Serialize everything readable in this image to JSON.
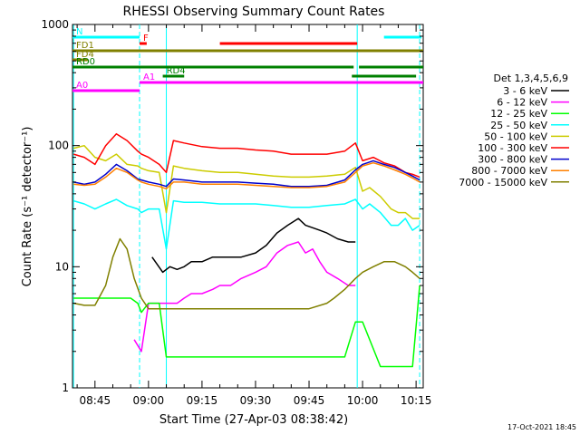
{
  "chart_data": {
    "type": "line",
    "title": "RHESSI Observing Summary Count Rates",
    "xlabel": "Start Time (27-Apr-03 08:38:42)",
    "ylabel": "Count Rate (s⁻¹ detector⁻¹)",
    "y_scale": "log",
    "ylim": [
      1,
      1000
    ],
    "xlim": [
      "08:38:42",
      "10:17:00"
    ],
    "x_ticks": [
      "08:45",
      "09:00",
      "09:15",
      "09:30",
      "09:45",
      "10:00",
      "10:15"
    ],
    "y_ticks": [
      "1",
      "10",
      "100",
      "1000"
    ],
    "footer": "17-Oct-2021 18:45",
    "legend": {
      "title": "Det 1,3,4,5,6,9",
      "position": "right",
      "entries": [
        {
          "label": "3 - 6 keV",
          "color": "#000000"
        },
        {
          "label": "6 - 12 keV",
          "color": "#ff00ff"
        },
        {
          "label": "12 - 25 keV",
          "color": "#00ff00"
        },
        {
          "label": "25 - 50 keV",
          "color": "#00ffff"
        },
        {
          "label": "50 - 100 keV",
          "color": "#cccc00"
        },
        {
          "label": "100 - 300 keV",
          "color": "#ff0000"
        },
        {
          "label": "300 - 800 keV",
          "color": "#0000cc"
        },
        {
          "label": "800 - 7000 keV",
          "color": "#ff8000"
        },
        {
          "label": "7000 - 15000 keV",
          "color": "#808000"
        }
      ]
    },
    "flags": [
      {
        "label": "N",
        "color": "#00ffff",
        "start": "08:38:42",
        "end": "08:57:30",
        "segments": [
          [
            "08:38:42",
            "08:57:30"
          ],
          [
            "10:06:00",
            "10:16:30"
          ]
        ]
      },
      {
        "label": "F",
        "color": "#ff0000",
        "start": "08:57:30",
        "end": "08:59:30",
        "segments": [
          [
            "08:57:30",
            "08:59:30"
          ],
          [
            "09:20:00",
            "09:58:30"
          ]
        ]
      },
      {
        "label": "FD1",
        "color": "#808000",
        "start": "08:38:42",
        "end": "10:17:00",
        "segments": [
          [
            "08:38:42",
            "10:17:00"
          ]
        ]
      },
      {
        "label": "FD4",
        "color": "#808000",
        "start": "08:38:42",
        "end": "08:43:00",
        "segments": [
          [
            "08:38:42",
            "08:43:00"
          ]
        ]
      },
      {
        "label": "RD0",
        "color": "#008000",
        "start": "08:38:42",
        "end": "10:17:00",
        "segments": [
          [
            "08:38:42",
            "09:57:30"
          ],
          [
            "09:59:00",
            "10:17:00"
          ]
        ]
      },
      {
        "label": "RD4",
        "color": "#008000",
        "start": "09:04:00",
        "end": "09:10:00",
        "segments": [
          [
            "09:04:00",
            "09:10:00"
          ],
          [
            "09:57:00",
            "10:15:00"
          ]
        ]
      },
      {
        "label": "A0",
        "color": "#ff00ff",
        "start": "08:38:42",
        "end": "08:57:30",
        "segments": [
          [
            "08:38:42",
            "08:57:30"
          ]
        ]
      },
      {
        "label": "A1",
        "color": "#ff00ff",
        "start": "08:57:30",
        "end": "10:17:00",
        "segments": [
          [
            "08:57:30",
            "10:17:00"
          ]
        ]
      }
    ],
    "series": [
      {
        "name": "3 - 6 keV",
        "color": "#000000",
        "x": [
          "09:01",
          "09:04",
          "09:06",
          "09:08",
          "09:10",
          "09:12",
          "09:15",
          "09:18",
          "09:20",
          "09:23",
          "09:26",
          "09:30",
          "09:33",
          "09:36",
          "09:39",
          "09:42",
          "09:44",
          "09:46",
          "09:48",
          "09:50",
          "09:53",
          "09:56",
          "09:58"
        ],
        "y": [
          12,
          9,
          10,
          9.5,
          10,
          11,
          11,
          12,
          12,
          12,
          12,
          13,
          15,
          19,
          22,
          25,
          22,
          21,
          20,
          19,
          17,
          16,
          16
        ]
      },
      {
        "name": "6 - 12 keV",
        "color": "#ff00ff",
        "x": [
          "08:56",
          "08:58",
          "09:00",
          "09:02",
          "09:04",
          "09:06",
          "09:08",
          "09:10",
          "09:12",
          "09:15",
          "09:18",
          "09:20",
          "09:23",
          "09:26",
          "09:30",
          "09:33",
          "09:36",
          "09:39",
          "09:42",
          "09:44",
          "09:46",
          "09:48",
          "09:50",
          "09:53",
          "09:56",
          "09:58"
        ],
        "y": [
          2.5,
          2,
          5,
          5,
          5,
          5,
          5,
          5.5,
          6,
          6,
          6.5,
          7,
          7,
          8,
          9,
          10,
          13,
          15,
          16,
          13,
          14,
          11,
          9,
          8,
          7,
          7
        ]
      },
      {
        "name": "12 - 25 keV",
        "color": "#00ff00",
        "x": [
          "08:39",
          "08:45",
          "08:50",
          "08:55",
          "08:57",
          "08:58",
          "09:00",
          "09:03",
          "09:05",
          "09:07",
          "09:10",
          "09:15",
          "09:20",
          "09:30",
          "09:40",
          "09:48",
          "09:55",
          "09:58",
          "10:00",
          "10:05",
          "10:10",
          "10:14",
          "10:16"
        ],
        "y": [
          5.5,
          5.5,
          5.5,
          5.5,
          5,
          4.2,
          5,
          5,
          1.8,
          1.8,
          1.8,
          1.8,
          1.8,
          1.8,
          1.8,
          1.8,
          1.8,
          3.5,
          3.5,
          1.5,
          1.5,
          1.5,
          7
        ]
      },
      {
        "name": "25 - 50 keV",
        "color": "#00ffff",
        "x": [
          "08:39",
          "08:42",
          "08:45",
          "08:48",
          "08:51",
          "08:54",
          "08:57",
          "08:58",
          "09:00",
          "09:03",
          "09:05",
          "09:07",
          "09:10",
          "09:15",
          "09:20",
          "09:25",
          "09:30",
          "09:35",
          "09:40",
          "09:45",
          "09:50",
          "09:55",
          "09:58",
          "10:00",
          "10:02",
          "10:05",
          "10:08",
          "10:10",
          "10:12",
          "10:14",
          "10:16"
        ],
        "y": [
          35,
          33,
          30,
          33,
          36,
          32,
          30,
          28,
          30,
          30,
          14,
          35,
          34,
          34,
          33,
          33,
          33,
          32,
          31,
          31,
          32,
          33,
          36,
          30,
          33,
          28,
          22,
          22,
          25,
          20,
          22
        ]
      },
      {
        "name": "50 - 100 keV",
        "color": "#cccc00",
        "x": [
          "08:39",
          "08:42",
          "08:45",
          "08:48",
          "08:51",
          "08:54",
          "08:57",
          "08:58",
          "09:00",
          "09:03",
          "09:05",
          "09:07",
          "09:10",
          "09:15",
          "09:20",
          "09:25",
          "09:30",
          "09:35",
          "09:40",
          "09:45",
          "09:50",
          "09:55",
          "09:58",
          "10:00",
          "10:02",
          "10:05",
          "10:08",
          "10:10",
          "10:12",
          "10:14",
          "10:16"
        ],
        "y": [
          95,
          100,
          80,
          75,
          85,
          70,
          68,
          65,
          62,
          60,
          28,
          68,
          65,
          62,
          60,
          60,
          58,
          56,
          55,
          55,
          56,
          58,
          66,
          42,
          45,
          38,
          30,
          28,
          28,
          25,
          25
        ]
      },
      {
        "name": "100 - 300 keV",
        "color": "#ff0000",
        "x": [
          "08:39",
          "08:42",
          "08:45",
          "08:48",
          "08:51",
          "08:54",
          "08:57",
          "08:58",
          "09:00",
          "09:03",
          "09:05",
          "09:07",
          "09:10",
          "09:15",
          "09:20",
          "09:25",
          "09:30",
          "09:35",
          "09:40",
          "09:45",
          "09:50",
          "09:55",
          "09:58",
          "10:00",
          "10:03",
          "10:06",
          "10:09",
          "10:12",
          "10:14",
          "10:16"
        ],
        "y": [
          85,
          80,
          70,
          100,
          125,
          110,
          90,
          85,
          80,
          70,
          60,
          110,
          105,
          98,
          95,
          95,
          92,
          90,
          85,
          85,
          85,
          90,
          105,
          75,
          80,
          72,
          68,
          60,
          58,
          55
        ]
      },
      {
        "name": "300 - 800 keV",
        "color": "#0000cc",
        "x": [
          "08:39",
          "08:42",
          "08:45",
          "08:48",
          "08:51",
          "08:54",
          "08:57",
          "08:58",
          "09:00",
          "09:03",
          "09:05",
          "09:07",
          "09:10",
          "09:15",
          "09:20",
          "09:25",
          "09:30",
          "09:35",
          "09:40",
          "09:45",
          "09:50",
          "09:55",
          "09:58",
          "10:00",
          "10:03",
          "10:06",
          "10:09",
          "10:12",
          "10:14",
          "10:16"
        ],
        "y": [
          50,
          48,
          50,
          58,
          70,
          62,
          53,
          52,
          50,
          48,
          46,
          53,
          52,
          50,
          50,
          50,
          49,
          48,
          46,
          46,
          47,
          52,
          63,
          70,
          75,
          70,
          66,
          60,
          56,
          52
        ]
      },
      {
        "name": "800 - 7000 keV",
        "color": "#ff8000",
        "x": [
          "08:39",
          "08:42",
          "08:45",
          "08:48",
          "08:51",
          "08:54",
          "08:57",
          "08:58",
          "09:00",
          "09:03",
          "09:05",
          "09:07",
          "09:10",
          "09:15",
          "09:20",
          "09:25",
          "09:30",
          "09:35",
          "09:40",
          "09:45",
          "09:50",
          "09:55",
          "09:58",
          "10:00",
          "10:03",
          "10:06",
          "10:09",
          "10:12",
          "10:14",
          "10:16"
        ],
        "y": [
          48,
          47,
          48,
          55,
          65,
          60,
          52,
          50,
          48,
          46,
          44,
          50,
          50,
          48,
          48,
          48,
          47,
          46,
          45,
          45,
          46,
          50,
          60,
          68,
          72,
          68,
          63,
          58,
          54,
          50
        ]
      },
      {
        "name": "7000 - 15000 keV",
        "color": "#808000",
        "x": [
          "08:39",
          "08:42",
          "08:45",
          "08:48",
          "08:50",
          "08:52",
          "08:54",
          "08:56",
          "08:58",
          "09:00",
          "09:05",
          "09:10",
          "09:15",
          "09:20",
          "09:30",
          "09:40",
          "09:45",
          "09:50",
          "09:52",
          "09:55",
          "09:58",
          "10:00",
          "10:03",
          "10:06",
          "10:09",
          "10:12",
          "10:14",
          "10:16"
        ],
        "y": [
          5,
          4.8,
          4.8,
          7,
          12,
          17,
          14,
          8,
          5.5,
          4.5,
          4.5,
          4.5,
          4.5,
          4.5,
          4.5,
          4.5,
          4.5,
          5,
          5.5,
          6.5,
          8,
          9,
          10,
          11,
          11,
          10,
          9,
          8
        ]
      }
    ]
  }
}
